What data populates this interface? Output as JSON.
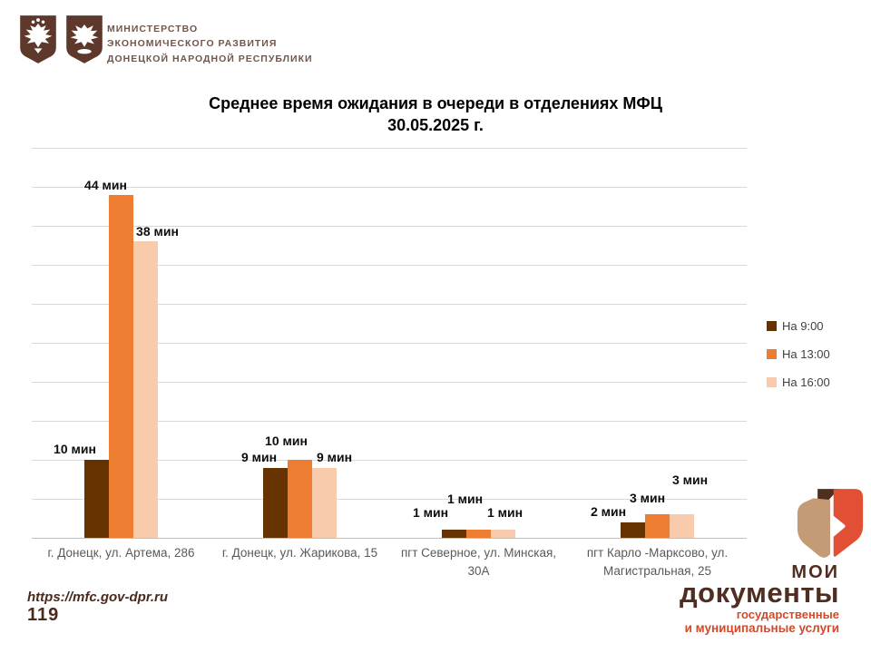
{
  "header": {
    "ministry_lines": [
      "Министерство",
      "экономического развития",
      "Донецкой Народной Республики"
    ]
  },
  "chart_data": {
    "type": "bar",
    "title": "Среднее время ожидания в очереди в отделениях МФЦ",
    "subtitle": "30.05.2025 г.",
    "unit": "мин",
    "categories": [
      "г. Донецк, ул. Артема, 286",
      "г. Донецк, ул. Жарикова, 15",
      "пгт Северное, ул. Минская, 30А",
      "пгт Карло -Марксово, ул. Магистральная, 25"
    ],
    "series": [
      {
        "name": "На 9:00",
        "color": "#663300",
        "values": [
          10,
          9,
          1,
          2
        ]
      },
      {
        "name": "На 13:00",
        "color": "#ED7D31",
        "values": [
          44,
          10,
          1,
          3
        ]
      },
      {
        "name": "На 16:00",
        "color": "#F8CBAD",
        "values": [
          38,
          9,
          1,
          3
        ]
      }
    ],
    "ylim": [
      0,
      50
    ],
    "grid_step": 5,
    "grid": true,
    "legend_position": "right",
    "colors": {
      "gridline": "#d9d9d9",
      "axis_line": "#bfbfbf",
      "axis_text": "#595959",
      "legend_text": "#404040"
    }
  },
  "footer": {
    "url": "https://mfc.gov-dpr.ru",
    "phone": "119"
  },
  "brand": {
    "top": "МОИ",
    "main": "документы",
    "sub1": "государственные",
    "sub2": "и муниципальные услуги"
  }
}
